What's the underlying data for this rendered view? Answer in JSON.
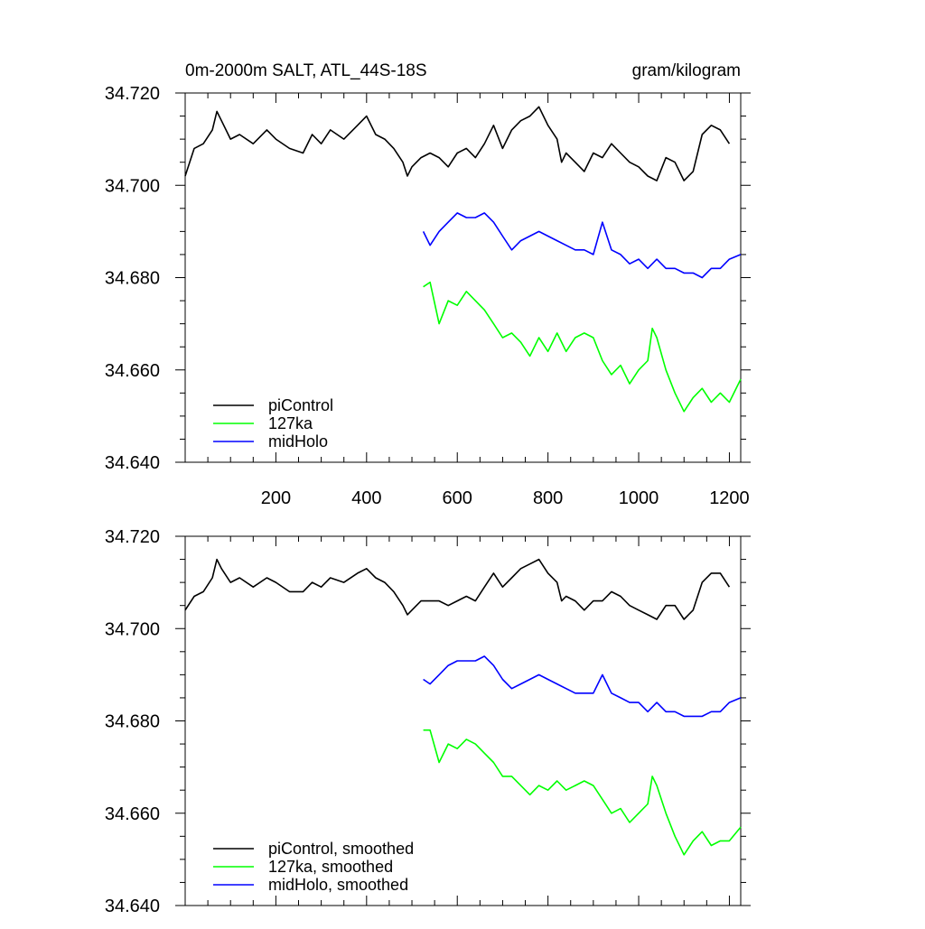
{
  "chart_data": [
    {
      "type": "line",
      "title_left": "0m-2000m SALT, ATL_44S-18S",
      "title_right": "gram/kilogram",
      "xlim": [
        0,
        1225
      ],
      "ylim": [
        34.64,
        34.72
      ],
      "x_ticks": [
        200,
        400,
        600,
        800,
        1000,
        1200
      ],
      "y_ticks": [
        "34.640",
        "34.660",
        "34.680",
        "34.700",
        "34.720"
      ],
      "legend_position": "bottom-left",
      "series": [
        {
          "name": "piControl",
          "color": "#000000",
          "x": [
            0,
            20,
            40,
            60,
            70,
            80,
            100,
            120,
            150,
            180,
            200,
            230,
            260,
            280,
            300,
            320,
            350,
            380,
            400,
            420,
            440,
            460,
            480,
            490,
            500,
            520,
            540,
            560,
            580,
            600,
            620,
            640,
            660,
            680,
            700,
            720,
            740,
            760,
            780,
            800,
            820,
            830,
            840,
            860,
            880,
            900,
            920,
            940,
            960,
            980,
            1000,
            1020,
            1040,
            1060,
            1080,
            1100,
            1120,
            1140,
            1160,
            1180,
            1200
          ],
          "y": [
            34.702,
            34.708,
            34.709,
            34.712,
            34.716,
            34.714,
            34.71,
            34.711,
            34.709,
            34.712,
            34.71,
            34.708,
            34.707,
            34.711,
            34.709,
            34.712,
            34.71,
            34.713,
            34.715,
            34.711,
            34.71,
            34.708,
            34.705,
            34.702,
            34.704,
            34.706,
            34.707,
            34.706,
            34.704,
            34.707,
            34.708,
            34.706,
            34.709,
            34.713,
            34.708,
            34.712,
            34.714,
            34.715,
            34.717,
            34.713,
            34.71,
            34.705,
            34.707,
            34.705,
            34.703,
            34.707,
            34.706,
            34.709,
            34.707,
            34.705,
            34.704,
            34.702,
            34.701,
            34.706,
            34.705,
            34.701,
            34.703,
            34.711,
            34.713,
            34.712,
            34.709
          ]
        },
        {
          "name": "127ka",
          "color": "#00ff00",
          "x": [
            525,
            540,
            560,
            580,
            600,
            620,
            640,
            660,
            680,
            700,
            720,
            740,
            760,
            780,
            800,
            820,
            840,
            860,
            880,
            900,
            920,
            940,
            960,
            980,
            1000,
            1020,
            1030,
            1040,
            1060,
            1080,
            1100,
            1120,
            1140,
            1160,
            1180,
            1200,
            1225
          ],
          "y": [
            34.678,
            34.679,
            34.67,
            34.675,
            34.674,
            34.677,
            34.675,
            34.673,
            34.67,
            34.667,
            34.668,
            34.666,
            34.663,
            34.667,
            34.664,
            34.668,
            34.664,
            34.667,
            34.668,
            34.667,
            34.662,
            34.659,
            34.661,
            34.657,
            34.66,
            34.662,
            34.669,
            34.667,
            34.66,
            34.655,
            34.651,
            34.654,
            34.656,
            34.653,
            34.655,
            34.653,
            34.658
          ]
        },
        {
          "name": "midHolo",
          "color": "#0000ff",
          "x": [
            525,
            540,
            560,
            580,
            600,
            620,
            640,
            660,
            680,
            700,
            720,
            740,
            760,
            780,
            800,
            820,
            840,
            860,
            880,
            900,
            920,
            940,
            960,
            980,
            1000,
            1020,
            1040,
            1060,
            1080,
            1100,
            1120,
            1140,
            1160,
            1180,
            1200,
            1225
          ],
          "y": [
            34.69,
            34.687,
            34.69,
            34.692,
            34.694,
            34.693,
            34.693,
            34.694,
            34.692,
            34.689,
            34.686,
            34.688,
            34.689,
            34.69,
            34.689,
            34.688,
            34.687,
            34.686,
            34.686,
            34.685,
            34.692,
            34.686,
            34.685,
            34.683,
            34.684,
            34.682,
            34.684,
            34.682,
            34.682,
            34.681,
            34.681,
            34.68,
            34.682,
            34.682,
            34.684,
            34.685
          ]
        }
      ]
    },
    {
      "type": "line",
      "xlim": [
        0,
        1225
      ],
      "ylim": [
        34.64,
        34.72
      ],
      "y_ticks": [
        "34.640",
        "34.660",
        "34.680",
        "34.700",
        "34.720"
      ],
      "legend_position": "bottom-left",
      "series": [
        {
          "name": "piControl, smoothed",
          "color": "#000000",
          "x": [
            0,
            20,
            40,
            60,
            70,
            80,
            100,
            120,
            150,
            180,
            200,
            230,
            260,
            280,
            300,
            320,
            350,
            380,
            400,
            420,
            440,
            460,
            480,
            490,
            500,
            520,
            540,
            560,
            580,
            600,
            620,
            640,
            660,
            680,
            700,
            720,
            740,
            760,
            780,
            800,
            820,
            830,
            840,
            860,
            880,
            900,
            920,
            940,
            960,
            980,
            1000,
            1020,
            1040,
            1060,
            1080,
            1100,
            1120,
            1140,
            1160,
            1180,
            1200
          ],
          "y": [
            34.704,
            34.707,
            34.708,
            34.711,
            34.715,
            34.713,
            34.71,
            34.711,
            34.709,
            34.711,
            34.71,
            34.708,
            34.708,
            34.71,
            34.709,
            34.711,
            34.71,
            34.712,
            34.713,
            34.711,
            34.71,
            34.708,
            34.705,
            34.703,
            34.704,
            34.706,
            34.706,
            34.706,
            34.705,
            34.706,
            34.707,
            34.706,
            34.709,
            34.712,
            34.709,
            34.711,
            34.713,
            34.714,
            34.715,
            34.712,
            34.71,
            34.706,
            34.707,
            34.706,
            34.704,
            34.706,
            34.706,
            34.708,
            34.707,
            34.705,
            34.704,
            34.703,
            34.702,
            34.705,
            34.705,
            34.702,
            34.704,
            34.71,
            34.712,
            34.712,
            34.709
          ]
        },
        {
          "name": "127ka, smoothed",
          "color": "#00ff00",
          "x": [
            525,
            540,
            560,
            580,
            600,
            620,
            640,
            660,
            680,
            700,
            720,
            740,
            760,
            780,
            800,
            820,
            840,
            860,
            880,
            900,
            920,
            940,
            960,
            980,
            1000,
            1020,
            1030,
            1040,
            1060,
            1080,
            1100,
            1120,
            1140,
            1160,
            1180,
            1200,
            1225
          ],
          "y": [
            34.678,
            34.678,
            34.671,
            34.675,
            34.674,
            34.676,
            34.675,
            34.673,
            34.671,
            34.668,
            34.668,
            34.666,
            34.664,
            34.666,
            34.665,
            34.667,
            34.665,
            34.666,
            34.667,
            34.666,
            34.663,
            34.66,
            34.661,
            34.658,
            34.66,
            34.662,
            34.668,
            34.666,
            34.66,
            34.655,
            34.651,
            34.654,
            34.656,
            34.653,
            34.654,
            34.654,
            34.657
          ]
        },
        {
          "name": "midHolo, smoothed",
          "color": "#0000ff",
          "x": [
            525,
            540,
            560,
            580,
            600,
            620,
            640,
            660,
            680,
            700,
            720,
            740,
            760,
            780,
            800,
            820,
            840,
            860,
            880,
            900,
            920,
            940,
            960,
            980,
            1000,
            1020,
            1040,
            1060,
            1080,
            1100,
            1120,
            1140,
            1160,
            1180,
            1200,
            1225
          ],
          "y": [
            34.689,
            34.688,
            34.69,
            34.692,
            34.693,
            34.693,
            34.693,
            34.694,
            34.692,
            34.689,
            34.687,
            34.688,
            34.689,
            34.69,
            34.689,
            34.688,
            34.687,
            34.686,
            34.686,
            34.686,
            34.69,
            34.686,
            34.685,
            34.684,
            34.684,
            34.682,
            34.684,
            34.682,
            34.682,
            34.681,
            34.681,
            34.681,
            34.682,
            34.682,
            34.684,
            34.685
          ]
        }
      ]
    }
  ]
}
